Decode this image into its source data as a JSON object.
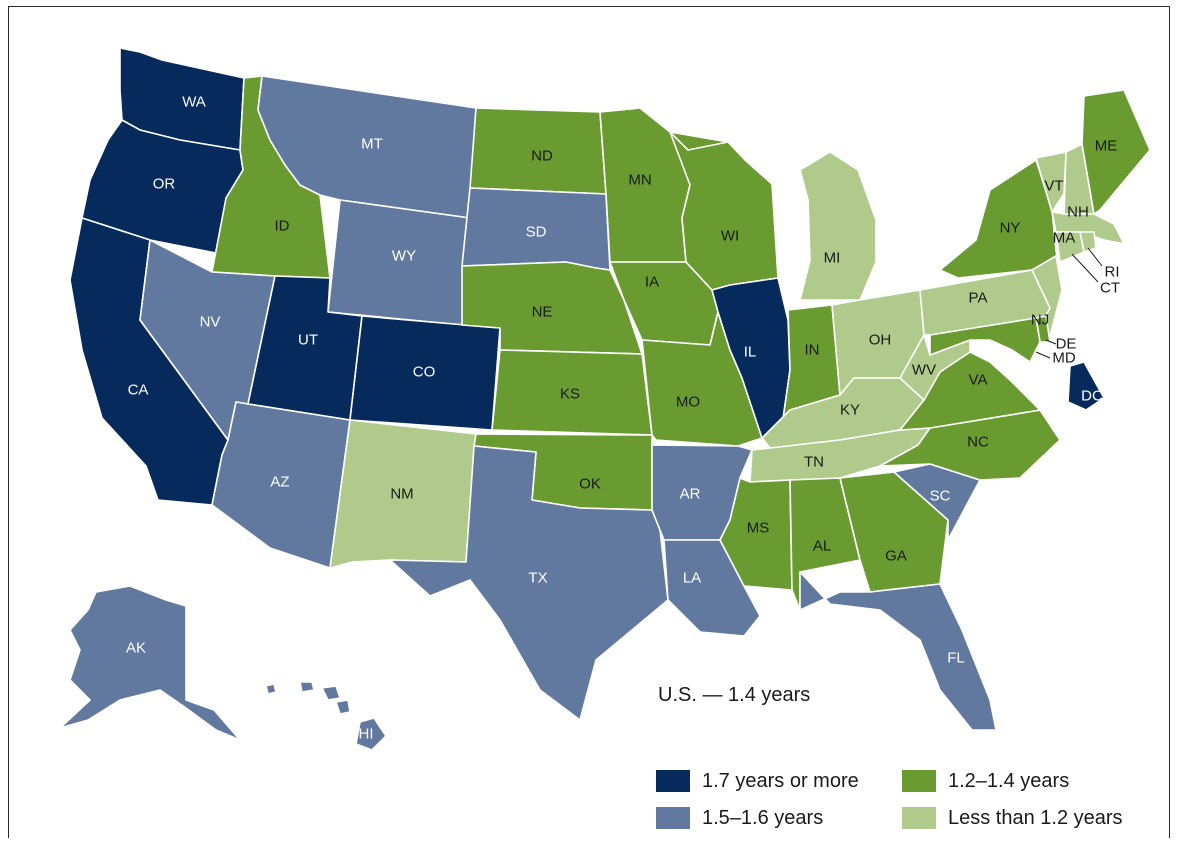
{
  "colors": {
    "cat1": "#062a5c",
    "cat2": "#61789f",
    "cat3": "#6a9b31",
    "cat4": "#afca8b"
  },
  "note": "U.S. — 1.4 years",
  "legend": [
    {
      "label": "1.7 years or more",
      "category": "cat1"
    },
    {
      "label": "1.2–1.4 years",
      "category": "cat3"
    },
    {
      "label": "1.5–1.6 years",
      "category": "cat2"
    },
    {
      "label": "Less than 1.2 years",
      "category": "cat4"
    }
  ],
  "states": [
    {
      "abbr": "WA",
      "category": "cat1"
    },
    {
      "abbr": "OR",
      "category": "cat1"
    },
    {
      "abbr": "CA",
      "category": "cat1"
    },
    {
      "abbr": "ID",
      "category": "cat3"
    },
    {
      "abbr": "NV",
      "category": "cat2"
    },
    {
      "abbr": "MT",
      "category": "cat2"
    },
    {
      "abbr": "WY",
      "category": "cat2"
    },
    {
      "abbr": "UT",
      "category": "cat1"
    },
    {
      "abbr": "CO",
      "category": "cat1"
    },
    {
      "abbr": "AZ",
      "category": "cat2"
    },
    {
      "abbr": "NM",
      "category": "cat4"
    },
    {
      "abbr": "ND",
      "category": "cat3"
    },
    {
      "abbr": "SD",
      "category": "cat2"
    },
    {
      "abbr": "NE",
      "category": "cat3"
    },
    {
      "abbr": "KS",
      "category": "cat3"
    },
    {
      "abbr": "OK",
      "category": "cat3"
    },
    {
      "abbr": "TX",
      "category": "cat2"
    },
    {
      "abbr": "MN",
      "category": "cat3"
    },
    {
      "abbr": "IA",
      "category": "cat3"
    },
    {
      "abbr": "MO",
      "category": "cat3"
    },
    {
      "abbr": "AR",
      "category": "cat2"
    },
    {
      "abbr": "LA",
      "category": "cat2"
    },
    {
      "abbr": "WI",
      "category": "cat3"
    },
    {
      "abbr": "IL",
      "category": "cat1"
    },
    {
      "abbr": "MI",
      "category": "cat4"
    },
    {
      "abbr": "IN",
      "category": "cat3"
    },
    {
      "abbr": "OH",
      "category": "cat4"
    },
    {
      "abbr": "KY",
      "category": "cat4"
    },
    {
      "abbr": "TN",
      "category": "cat4"
    },
    {
      "abbr": "MS",
      "category": "cat3"
    },
    {
      "abbr": "AL",
      "category": "cat3"
    },
    {
      "abbr": "GA",
      "category": "cat3"
    },
    {
      "abbr": "FL",
      "category": "cat2"
    },
    {
      "abbr": "SC",
      "category": "cat2"
    },
    {
      "abbr": "NC",
      "category": "cat3"
    },
    {
      "abbr": "VA",
      "category": "cat3"
    },
    {
      "abbr": "WV",
      "category": "cat4"
    },
    {
      "abbr": "PA",
      "category": "cat4"
    },
    {
      "abbr": "NY",
      "category": "cat3"
    },
    {
      "abbr": "VT",
      "category": "cat4"
    },
    {
      "abbr": "NH",
      "category": "cat4"
    },
    {
      "abbr": "ME",
      "category": "cat3"
    },
    {
      "abbr": "MA",
      "category": "cat4"
    },
    {
      "abbr": "RI",
      "category": "cat4"
    },
    {
      "abbr": "CT",
      "category": "cat4"
    },
    {
      "abbr": "NJ",
      "category": "cat4"
    },
    {
      "abbr": "DE",
      "category": "cat3"
    },
    {
      "abbr": "MD",
      "category": "cat3"
    },
    {
      "abbr": "DC",
      "category": "cat1"
    },
    {
      "abbr": "AK",
      "category": "cat2"
    },
    {
      "abbr": "HI",
      "category": "cat2"
    }
  ]
}
